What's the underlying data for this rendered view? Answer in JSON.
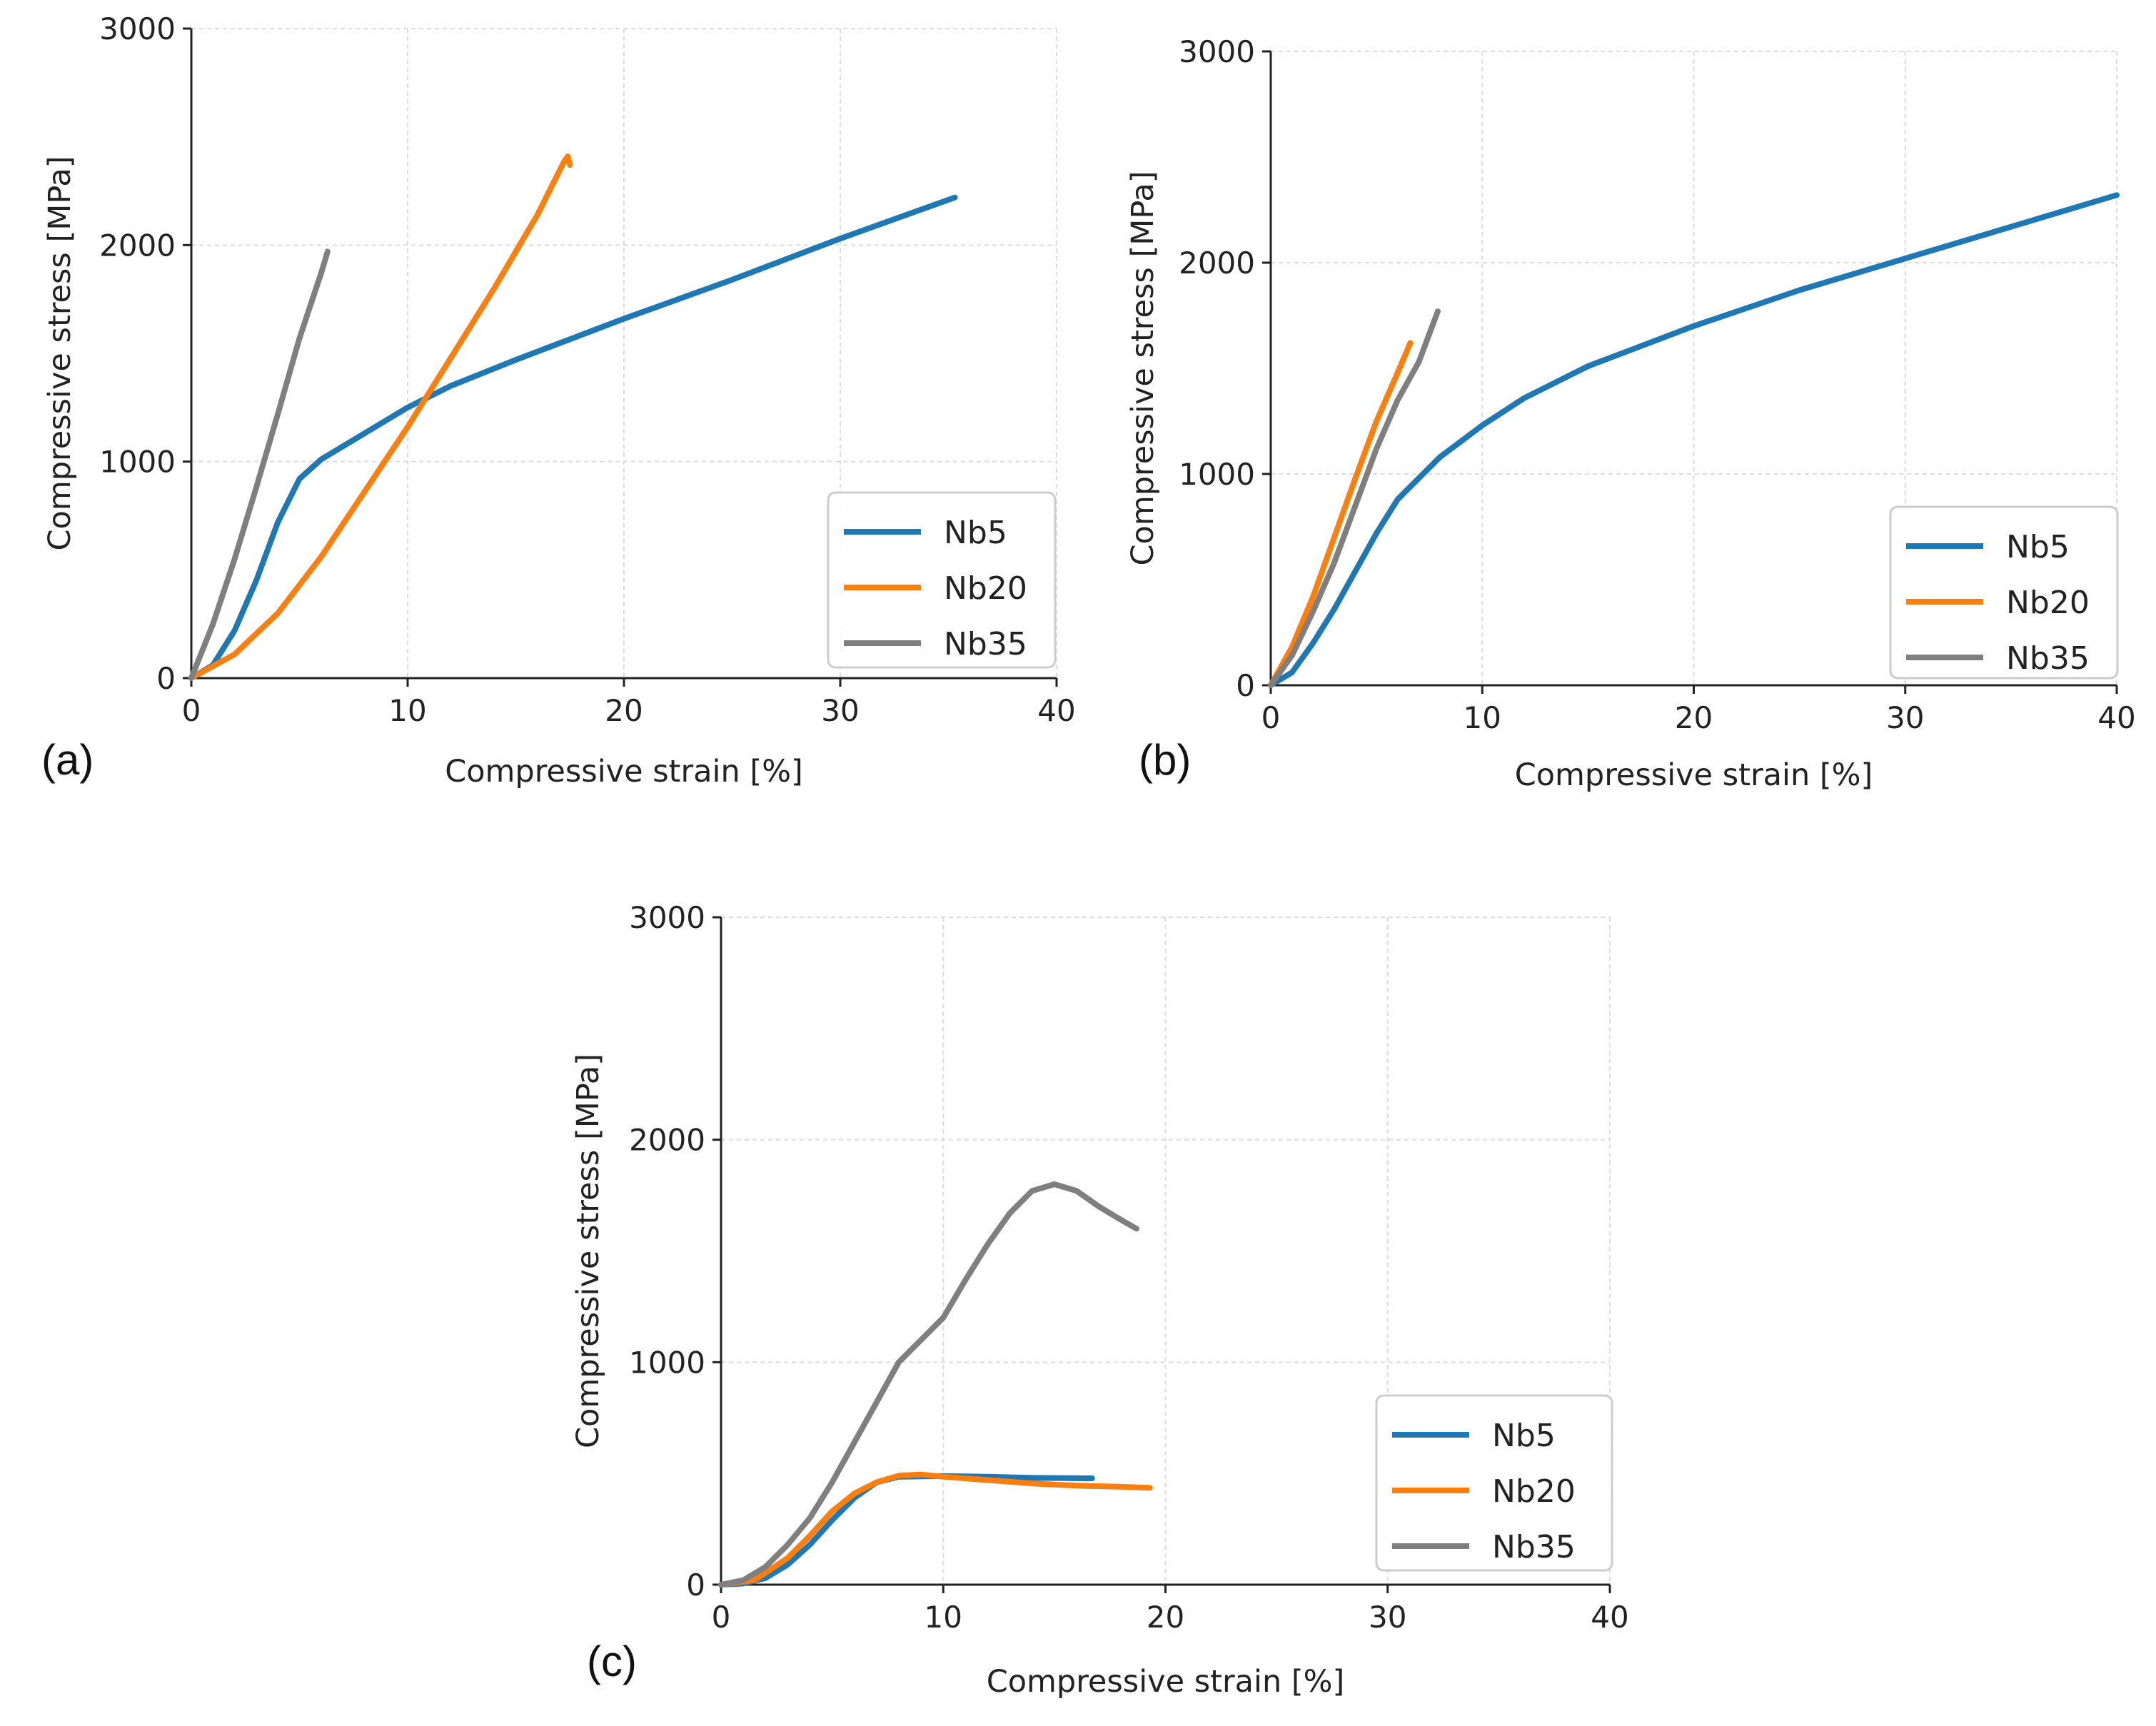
{
  "chart_data": [
    {
      "type": "line",
      "panel_label": "(a)",
      "xlabel": "Compressive strain [%]",
      "ylabel": "Compressive stress [MPa]",
      "xlim": [
        0,
        40
      ],
      "ylim": [
        0,
        3000
      ],
      "xticks": [
        "0",
        "10",
        "20",
        "30",
        "40"
      ],
      "yticks": [
        "0",
        "1000",
        "2000",
        "3000"
      ],
      "grid": true,
      "legend_position": "lower-right",
      "series": [
        {
          "name": "Nb5",
          "color": "#1f77b4",
          "points": [
            [
              0,
              0
            ],
            [
              1,
              60
            ],
            [
              2,
              220
            ],
            [
              3,
              450
            ],
            [
              4,
              720
            ],
            [
              5,
              920
            ],
            [
              6,
              1010
            ],
            [
              8,
              1130
            ],
            [
              10,
              1250
            ],
            [
              12,
              1350
            ],
            [
              15,
              1470
            ],
            [
              20,
              1660
            ],
            [
              25,
              1840
            ],
            [
              30,
              2030
            ],
            [
              35.3,
              2220
            ]
          ]
        },
        {
          "name": "Nb20",
          "color": "#ff7f0e",
          "points": [
            [
              0,
              0
            ],
            [
              2,
              110
            ],
            [
              4,
              300
            ],
            [
              6,
              560
            ],
            [
              8,
              860
            ],
            [
              10,
              1160
            ],
            [
              12,
              1480
            ],
            [
              14,
              1800
            ],
            [
              16,
              2140
            ],
            [
              17.2,
              2380
            ],
            [
              17.4,
              2410
            ],
            [
              17.5,
              2370
            ]
          ]
        },
        {
          "name": "Nb35",
          "color": "#7f7f7f",
          "points": [
            [
              0,
              0
            ],
            [
              1,
              250
            ],
            [
              2,
              550
            ],
            [
              3,
              880
            ],
            [
              4,
              1220
            ],
            [
              5,
              1570
            ],
            [
              6,
              1870
            ],
            [
              6.3,
              1970
            ]
          ]
        }
      ]
    },
    {
      "type": "line",
      "panel_label": "(b)",
      "xlabel": "Compressive strain [%]",
      "ylabel": "Compressive stress [MPa]",
      "xlim": [
        0,
        40
      ],
      "ylim": [
        0,
        3000
      ],
      "xticks": [
        "0",
        "10",
        "20",
        "30",
        "40"
      ],
      "yticks": [
        "0",
        "1000",
        "2000",
        "3000"
      ],
      "grid": true,
      "legend_position": "lower-right",
      "series": [
        {
          "name": "Nb5",
          "color": "#1f77b4",
          "points": [
            [
              0,
              0
            ],
            [
              1,
              60
            ],
            [
              2,
              200
            ],
            [
              3,
              360
            ],
            [
              4,
              540
            ],
            [
              5,
              720
            ],
            [
              6,
              880
            ],
            [
              8,
              1080
            ],
            [
              10,
              1230
            ],
            [
              12,
              1360
            ],
            [
              15,
              1510
            ],
            [
              20,
              1700
            ],
            [
              25,
              1870
            ],
            [
              30,
              2020
            ],
            [
              35,
              2170
            ],
            [
              40,
              2320
            ]
          ]
        },
        {
          "name": "Nb20",
          "color": "#ff7f0e",
          "points": [
            [
              0,
              0
            ],
            [
              1,
              180
            ],
            [
              2,
              420
            ],
            [
              3,
              700
            ],
            [
              4,
              980
            ],
            [
              5,
              1250
            ],
            [
              6,
              1480
            ],
            [
              6.6,
              1620
            ]
          ]
        },
        {
          "name": "Nb35",
          "color": "#7f7f7f",
          "points": [
            [
              0,
              0
            ],
            [
              1,
              140
            ],
            [
              2,
              350
            ],
            [
              3,
              580
            ],
            [
              4,
              850
            ],
            [
              5,
              1120
            ],
            [
              6,
              1350
            ],
            [
              7,
              1530
            ],
            [
              7.9,
              1770
            ]
          ]
        }
      ]
    },
    {
      "type": "line",
      "panel_label": "(c)",
      "xlabel": "Compressive strain [%]",
      "ylabel": "Compressive stress [MPa]",
      "xlim": [
        0,
        40
      ],
      "ylim": [
        0,
        3000
      ],
      "xticks": [
        "0",
        "10",
        "20",
        "30",
        "40"
      ],
      "yticks": [
        "0",
        "1000",
        "2000",
        "3000"
      ],
      "grid": true,
      "legend_position": "lower-right",
      "series": [
        {
          "name": "Nb5",
          "color": "#1f77b4",
          "points": [
            [
              0,
              0
            ],
            [
              1,
              5
            ],
            [
              2,
              30
            ],
            [
              3,
              90
            ],
            [
              4,
              180
            ],
            [
              5,
              290
            ],
            [
              6,
              390
            ],
            [
              7,
              460
            ],
            [
              8,
              485
            ],
            [
              10,
              488
            ],
            [
              12,
              485
            ],
            [
              14,
              480
            ],
            [
              16.7,
              478
            ]
          ]
        },
        {
          "name": "Nb20",
          "color": "#ff7f0e",
          "points": [
            [
              0,
              0
            ],
            [
              1.5,
              20
            ],
            [
              3,
              120
            ],
            [
              4,
              220
            ],
            [
              5,
              330
            ],
            [
              6,
              410
            ],
            [
              7,
              460
            ],
            [
              8,
              490
            ],
            [
              9,
              495
            ],
            [
              10,
              485
            ],
            [
              12,
              470
            ],
            [
              14,
              455
            ],
            [
              16,
              445
            ],
            [
              18,
              440
            ],
            [
              19.3,
              435
            ]
          ]
        },
        {
          "name": "Nb35",
          "color": "#7f7f7f",
          "points": [
            [
              0,
              0
            ],
            [
              1,
              20
            ],
            [
              2,
              80
            ],
            [
              3,
              180
            ],
            [
              4,
              300
            ],
            [
              5,
              460
            ],
            [
              6,
              640
            ],
            [
              7,
              820
            ],
            [
              8,
              1000
            ],
            [
              9,
              1100
            ],
            [
              10,
              1200
            ],
            [
              11,
              1370
            ],
            [
              12,
              1530
            ],
            [
              13,
              1670
            ],
            [
              14,
              1770
            ],
            [
              15,
              1800
            ],
            [
              16,
              1770
            ],
            [
              17,
              1700
            ],
            [
              18,
              1640
            ],
            [
              18.7,
              1600
            ]
          ]
        }
      ]
    }
  ]
}
